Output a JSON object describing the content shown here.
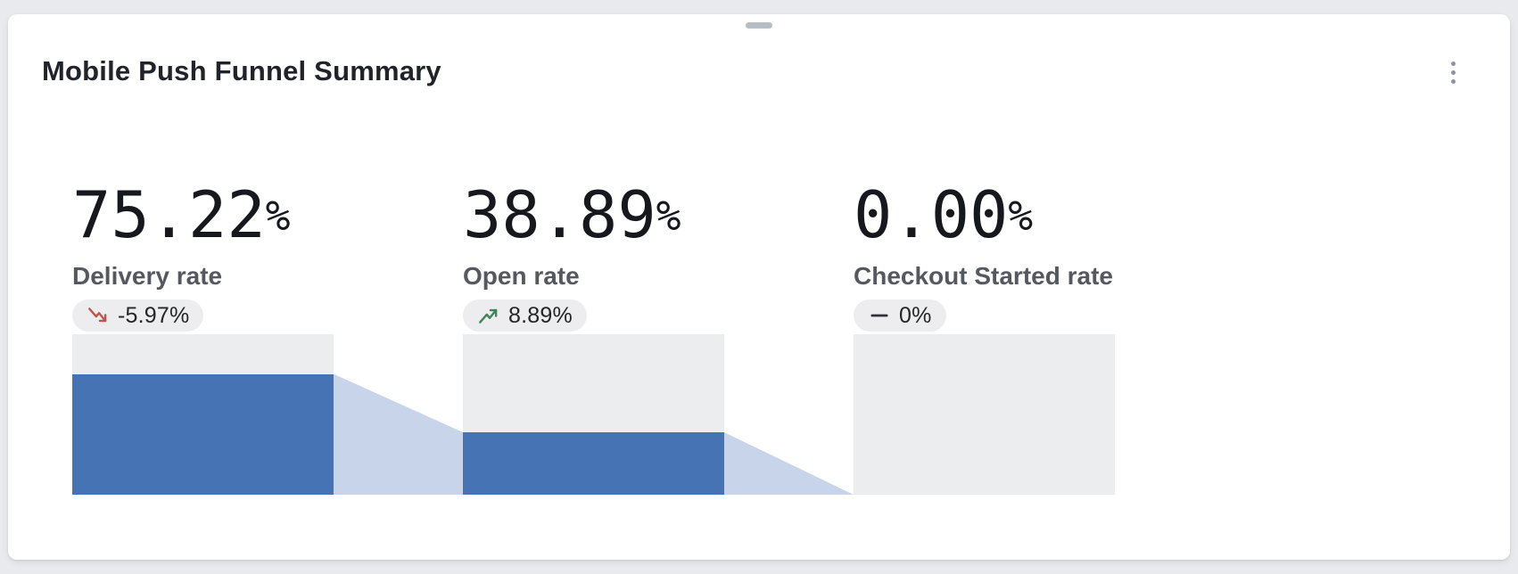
{
  "card": {
    "title": "Mobile Push Funnel Summary",
    "menu_icon": "kebab-menu-icon",
    "drag_handle_icon": "drag-handle"
  },
  "chart_data": {
    "type": "funnel",
    "title": "Mobile Push Funnel Summary",
    "stages": [
      {
        "label": "Delivery rate",
        "value": "75.22",
        "unit": "%",
        "value_pct": 75.22,
        "delta": "-5.97%",
        "trend": "down"
      },
      {
        "label": "Open rate",
        "value": "38.89",
        "unit": "%",
        "value_pct": 38.89,
        "delta": "8.89%",
        "trend": "up"
      },
      {
        "label": "Checkout Started rate",
        "value": "0.00",
        "unit": "%",
        "value_pct": 0.0,
        "delta": "0%",
        "trend": "flat"
      }
    ],
    "layout": {
      "bar_track_full_pct": 100,
      "connectors": true,
      "legend": "none",
      "gridlines": false
    },
    "colors": {
      "bar_fill": "#4673b4",
      "connector": "#c7d4e9",
      "bar_track": "#ebedef",
      "trend_up": "#3d8456",
      "trend_down": "#c0544a",
      "trend_flat": "#2f3136",
      "badge_background": "#ededef",
      "page_background": "#e8eaed",
      "card_background": "#ffffff"
    }
  }
}
